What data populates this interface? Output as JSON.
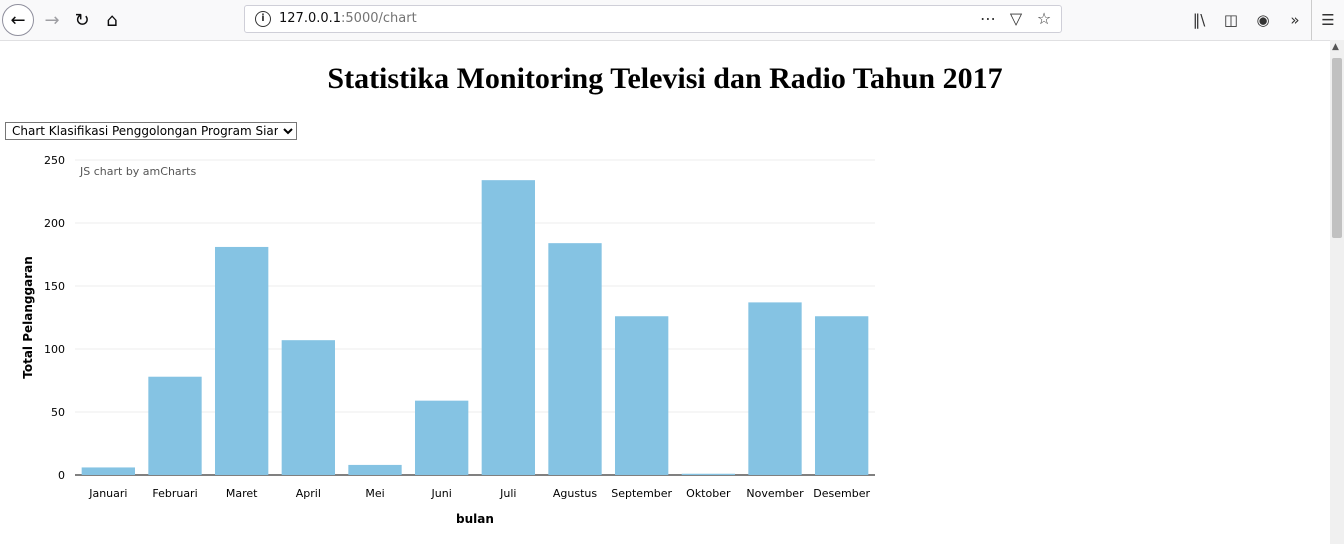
{
  "browser": {
    "url_host": "127.0.0.1",
    "url_path": ":5000/chart",
    "icons": [
      "back-arrow-icon",
      "forward-arrow-icon",
      "reload-icon",
      "home-icon",
      "info-icon",
      "page-actions-icon",
      "pocket-icon",
      "bookmark-star-icon",
      "library-icon",
      "sidebar-icon",
      "account-icon",
      "overflow-icon",
      "menu-icon"
    ]
  },
  "page": {
    "title": "Statistika Monitoring Televisi dan Radio Tahun 2017",
    "select_value": "Chart Klasifikasi Penggolongan Program Siaran"
  },
  "chart_data": {
    "type": "bar",
    "credit": "JS chart by amCharts",
    "categories": [
      "Januari",
      "Februari",
      "Maret",
      "April",
      "Mei",
      "Juni",
      "Juli",
      "Agustus",
      "September",
      "Oktober",
      "November",
      "Desember"
    ],
    "values": [
      6,
      78,
      181,
      107,
      8,
      59,
      234,
      184,
      126,
      1,
      137,
      126
    ],
    "xlabel": "bulan",
    "ylabel": "Total Pelanggaran",
    "ylim": [
      0,
      250
    ],
    "yticks": [
      "0",
      "50",
      "100",
      "150",
      "200",
      "250"
    ],
    "bar_color": "#85c3e3",
    "grid": true
  }
}
